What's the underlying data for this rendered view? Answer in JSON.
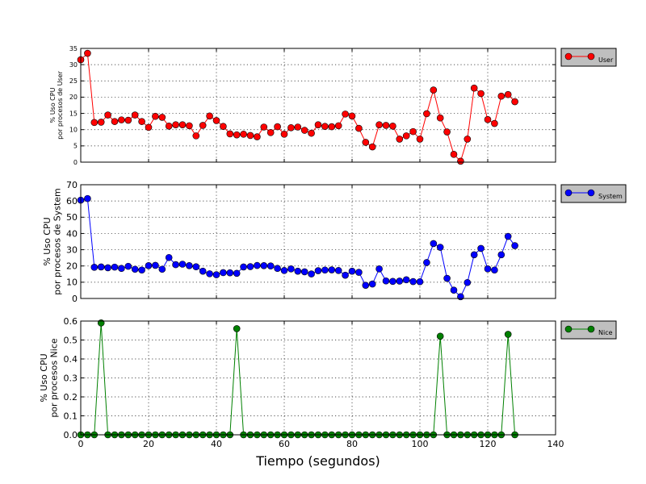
{
  "chart_data": [
    {
      "type": "line",
      "xlabel": "",
      "ylabel": [
        "% Uso CPU",
        "por procesos de User"
      ],
      "xlim": [
        0,
        140
      ],
      "ylim": [
        0,
        35
      ],
      "yticks": [
        0,
        5,
        10,
        15,
        20,
        25,
        30,
        35
      ],
      "xticks": [
        0,
        20,
        40,
        60,
        80,
        100,
        120,
        140
      ],
      "show_xtick_labels": false,
      "grid": true,
      "legend_position": "outside-right-top",
      "series": [
        {
          "name": "User",
          "color": "#ff0000",
          "x": [
            0,
            2,
            4,
            6,
            8,
            10,
            12,
            14,
            16,
            18,
            20,
            22,
            24,
            26,
            28,
            30,
            32,
            34,
            36,
            38,
            40,
            42,
            44,
            46,
            48,
            50,
            52,
            54,
            56,
            58,
            60,
            62,
            64,
            66,
            68,
            70,
            72,
            74,
            76,
            78,
            80,
            82,
            84,
            86,
            88,
            90,
            92,
            94,
            96,
            98,
            100,
            102,
            104,
            106,
            108,
            110,
            112,
            114,
            116,
            118,
            120,
            122,
            124,
            126,
            128
          ],
          "y": [
            31.5,
            33.5,
            12.2,
            12.3,
            14.5,
            12.5,
            13.0,
            12.9,
            14.5,
            12.5,
            10.7,
            14.1,
            13.8,
            11.1,
            11.5,
            11.5,
            11.2,
            8.1,
            11.3,
            14.2,
            12.8,
            11.0,
            8.7,
            8.4,
            8.6,
            8.2,
            7.8,
            10.8,
            9.1,
            10.9,
            8.6,
            10.6,
            10.8,
            9.8,
            8.9,
            11.5,
            11.0,
            10.9,
            11.2,
            14.8,
            14.2,
            10.4,
            6.1,
            4.7,
            11.5,
            11.3,
            11.1,
            7.1,
            8.1,
            9.4,
            7.1,
            14.9,
            22.2,
            13.6,
            9.3,
            2.4,
            0.3,
            7.1,
            22.8,
            21.1,
            13.1,
            11.9,
            20.3,
            20.8,
            18.6
          ]
        }
      ]
    },
    {
      "type": "line",
      "xlabel": "",
      "ylabel": [
        "% Uso CPU",
        "por procesos de System"
      ],
      "xlim": [
        0,
        140
      ],
      "ylim": [
        0,
        70
      ],
      "yticks": [
        0,
        10,
        20,
        30,
        40,
        50,
        60,
        70
      ],
      "xticks": [
        0,
        20,
        40,
        60,
        80,
        100,
        120,
        140
      ],
      "show_xtick_labels": false,
      "grid": true,
      "legend_position": "outside-right-top",
      "series": [
        {
          "name": "System",
          "color": "#0000ff",
          "x": [
            0,
            2,
            4,
            6,
            8,
            10,
            12,
            14,
            16,
            18,
            20,
            22,
            24,
            26,
            28,
            30,
            32,
            34,
            36,
            38,
            40,
            42,
            44,
            46,
            48,
            50,
            52,
            54,
            56,
            58,
            60,
            62,
            64,
            66,
            68,
            70,
            72,
            74,
            76,
            78,
            80,
            82,
            84,
            86,
            88,
            90,
            92,
            94,
            96,
            98,
            100,
            102,
            104,
            106,
            108,
            110,
            112,
            114,
            116,
            118,
            120,
            122,
            124,
            126,
            128
          ],
          "y": [
            60.5,
            61.5,
            19.2,
            19.4,
            18.9,
            19.3,
            18.5,
            19.8,
            18.0,
            17.5,
            20.2,
            20.4,
            18.0,
            25.2,
            20.8,
            21.1,
            20.2,
            19.5,
            16.8,
            15.2,
            14.6,
            15.9,
            15.8,
            15.5,
            19.4,
            19.6,
            20.3,
            20.2,
            20.0,
            18.5,
            17.2,
            18.2,
            16.8,
            16.4,
            15.1,
            17.1,
            17.5,
            17.6,
            17.2,
            14.3,
            16.8,
            16.1,
            8.1,
            8.9,
            18.2,
            10.8,
            10.5,
            10.7,
            11.5,
            10.4,
            10.3,
            22.1,
            33.8,
            31.5,
            12.4,
            5.1,
            1.1,
            9.8,
            26.9,
            30.8,
            18.2,
            17.5,
            26.9,
            38.2,
            32.5
          ]
        }
      ]
    },
    {
      "type": "line",
      "xlabel": "Tiempo (segundos)",
      "ylabel": [
        "% Uso CPU",
        "por procesos Nice"
      ],
      "xlim": [
        0,
        140
      ],
      "ylim": [
        0,
        0.6
      ],
      "yticks": [
        0.0,
        0.1,
        0.2,
        0.3,
        0.4,
        0.5,
        0.6
      ],
      "xticks": [
        0,
        20,
        40,
        60,
        80,
        100,
        120,
        140
      ],
      "show_xtick_labels": true,
      "grid": true,
      "legend_position": "outside-right-top",
      "series": [
        {
          "name": "Nice",
          "color": "#008000",
          "x": [
            0,
            2,
            4,
            6,
            8,
            10,
            12,
            14,
            16,
            18,
            20,
            22,
            24,
            26,
            28,
            30,
            32,
            34,
            36,
            38,
            40,
            42,
            44,
            46,
            48,
            50,
            52,
            54,
            56,
            58,
            60,
            62,
            64,
            66,
            68,
            70,
            72,
            74,
            76,
            78,
            80,
            82,
            84,
            86,
            88,
            90,
            92,
            94,
            96,
            98,
            100,
            102,
            104,
            106,
            108,
            110,
            112,
            114,
            116,
            118,
            120,
            122,
            124,
            126,
            128
          ],
          "y": [
            0,
            0,
            0,
            0.59,
            0,
            0,
            0,
            0,
            0,
            0,
            0,
            0,
            0,
            0,
            0,
            0,
            0,
            0,
            0,
            0,
            0,
            0,
            0,
            0.56,
            0,
            0,
            0,
            0,
            0,
            0,
            0,
            0,
            0,
            0,
            0,
            0,
            0,
            0,
            0,
            0,
            0,
            0,
            0,
            0,
            0,
            0,
            0,
            0,
            0,
            0,
            0,
            0,
            0,
            0.52,
            0,
            0,
            0,
            0,
            0,
            0,
            0,
            0,
            0,
            0.53,
            0
          ]
        }
      ]
    }
  ]
}
